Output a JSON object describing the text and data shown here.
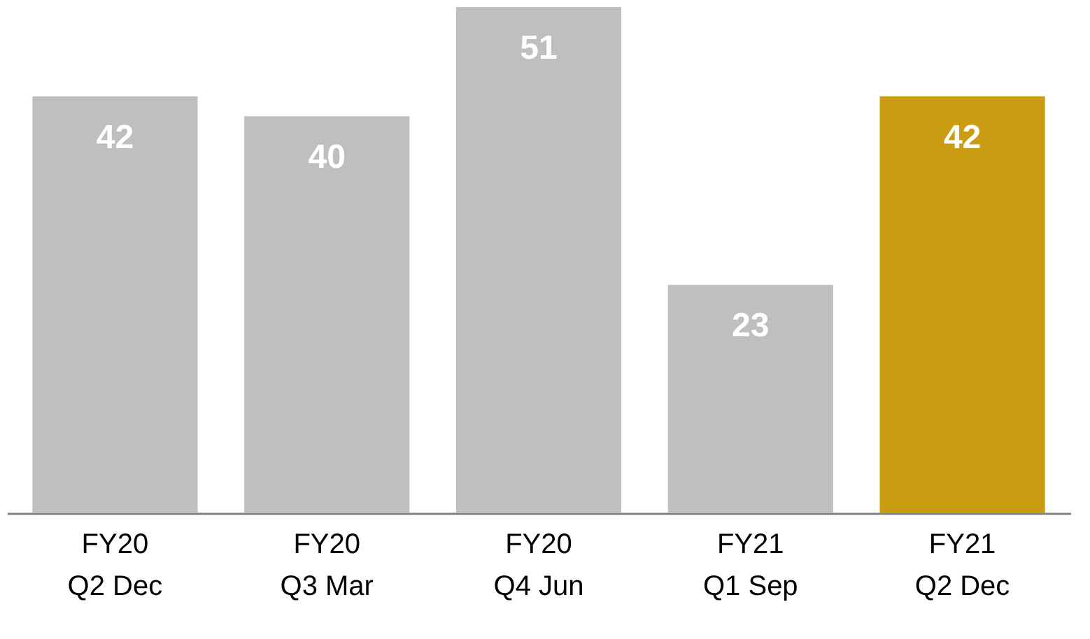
{
  "chart_data": {
    "type": "bar",
    "categories": [
      "FY20 Q2 Dec",
      "FY20 Q3 Mar",
      "FY20 Q4 Jun",
      "FY21 Q1 Sep",
      "FY21 Q2 Dec"
    ],
    "values": [
      42,
      40,
      51,
      23,
      42
    ],
    "colors": [
      "#bfbfbf",
      "#bfbfbf",
      "#bfbfbf",
      "#bfbfbf",
      "#c99c12"
    ],
    "data_labels": true,
    "tick_labels": "x"
  }
}
